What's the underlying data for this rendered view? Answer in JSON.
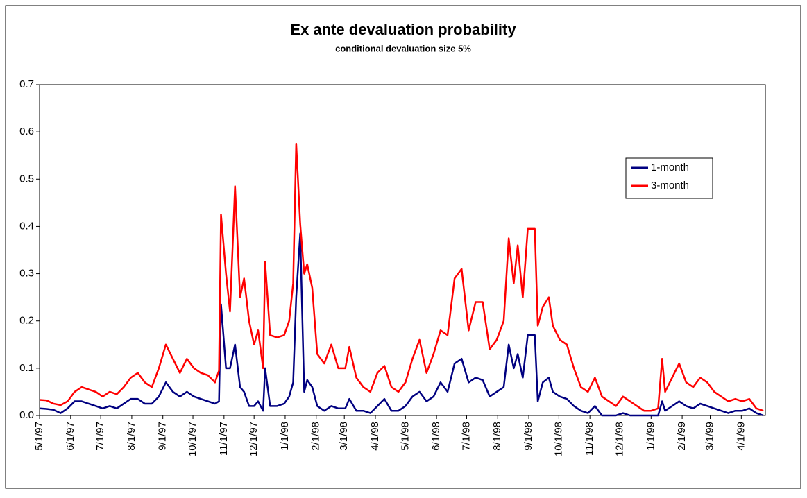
{
  "chart_data": {
    "type": "line",
    "title": "Ex ante devaluation probability",
    "subtitle": "conditional devaluation size 5%",
    "x": [
      "5/1/97",
      "5/8/97",
      "5/15/97",
      "5/22/97",
      "5/29/97",
      "6/5/97",
      "6/12/97",
      "6/19/97",
      "6/26/97",
      "7/3/97",
      "7/10/97",
      "7/17/97",
      "7/24/97",
      "7/31/97",
      "8/7/97",
      "8/14/97",
      "8/21/97",
      "8/28/97",
      "9/4/97",
      "9/11/97",
      "9/18/97",
      "9/25/97",
      "10/2/97",
      "10/9/97",
      "10/16/97",
      "10/23/97",
      "10/27/97",
      "10/29/97",
      "11/3/97",
      "11/7/97",
      "11/12/97",
      "11/17/97",
      "11/21/97",
      "11/26/97",
      "12/1/97",
      "12/5/97",
      "12/10/97",
      "12/12/97",
      "12/17/97",
      "12/24/97",
      "12/31/97",
      "1/5/98",
      "1/9/98",
      "1/12/98",
      "1/16/98",
      "1/20/98",
      "1/23/98",
      "1/28/98",
      "2/2/98",
      "2/9/98",
      "2/16/98",
      "2/23/98",
      "3/2/98",
      "3/6/98",
      "3/13/98",
      "3/20/98",
      "3/27/98",
      "4/3/98",
      "4/10/98",
      "4/17/98",
      "4/24/98",
      "5/1/98",
      "5/8/98",
      "5/15/98",
      "5/22/98",
      "5/29/98",
      "6/5/98",
      "6/12/98",
      "6/19/98",
      "6/26/98",
      "7/3/98",
      "7/10/98",
      "7/17/98",
      "7/24/98",
      "7/31/98",
      "8/7/98",
      "8/12/98",
      "8/17/98",
      "8/21/98",
      "8/26/98",
      "8/31/98",
      "9/7/98",
      "9/10/98",
      "9/15/98",
      "9/21/98",
      "9/25/98",
      "10/2/98",
      "10/9/98",
      "10/16/98",
      "10/23/98",
      "10/30/98",
      "11/6/98",
      "11/13/98",
      "11/20/98",
      "11/27/98",
      "12/4/98",
      "12/11/98",
      "12/18/98",
      "12/25/98",
      "1/1/99",
      "1/8/99",
      "1/12/99",
      "1/15/99",
      "1/22/99",
      "1/29/99",
      "2/5/99",
      "2/12/99",
      "2/19/99",
      "2/26/99",
      "3/5/99",
      "3/12/99",
      "3/19/99",
      "3/26/99",
      "4/2/99",
      "4/9/99",
      "4/16/99",
      "4/23/99"
    ],
    "series": [
      {
        "name": "1-month",
        "color": "#000080",
        "values": [
          0.015,
          0.014,
          0.012,
          0.005,
          0.015,
          0.03,
          0.03,
          0.025,
          0.02,
          0.015,
          0.02,
          0.015,
          0.025,
          0.035,
          0.035,
          0.025,
          0.025,
          0.04,
          0.07,
          0.05,
          0.04,
          0.05,
          0.04,
          0.035,
          0.03,
          0.025,
          0.03,
          0.235,
          0.1,
          0.1,
          0.15,
          0.06,
          0.05,
          0.02,
          0.02,
          0.03,
          0.01,
          0.1,
          0.02,
          0.02,
          0.025,
          0.04,
          0.07,
          0.25,
          0.385,
          0.05,
          0.075,
          0.06,
          0.02,
          0.01,
          0.02,
          0.015,
          0.015,
          0.035,
          0.01,
          0.01,
          0.005,
          0.02,
          0.035,
          0.01,
          0.01,
          0.02,
          0.04,
          0.05,
          0.03,
          0.04,
          0.07,
          0.05,
          0.11,
          0.12,
          0.07,
          0.08,
          0.075,
          0.04,
          0.05,
          0.06,
          0.15,
          0.1,
          0.13,
          0.08,
          0.17,
          0.17,
          0.03,
          0.07,
          0.08,
          0.05,
          0.04,
          0.035,
          0.02,
          0.01,
          0.005,
          0.02,
          0,
          0,
          0,
          0.005,
          0,
          0,
          0,
          0,
          0,
          0.03,
          0.01,
          0.02,
          0.03,
          0.02,
          0.015,
          0.025,
          0.02,
          0.015,
          0.01,
          0.005,
          0.01,
          0.01,
          0.015,
          0.005,
          0
        ]
      },
      {
        "name": "3-month",
        "color": "#ff0000",
        "values": [
          0.033,
          0.032,
          0.025,
          0.022,
          0.03,
          0.05,
          0.06,
          0.055,
          0.05,
          0.04,
          0.05,
          0.045,
          0.06,
          0.08,
          0.09,
          0.07,
          0.06,
          0.1,
          0.15,
          0.12,
          0.09,
          0.12,
          0.1,
          0.09,
          0.085,
          0.07,
          0.095,
          0.425,
          0.3,
          0.22,
          0.485,
          0.25,
          0.29,
          0.2,
          0.15,
          0.18,
          0.1,
          0.325,
          0.17,
          0.165,
          0.17,
          0.2,
          0.28,
          0.575,
          0.405,
          0.3,
          0.32,
          0.27,
          0.13,
          0.11,
          0.15,
          0.1,
          0.1,
          0.145,
          0.08,
          0.06,
          0.05,
          0.09,
          0.105,
          0.06,
          0.05,
          0.07,
          0.12,
          0.16,
          0.09,
          0.13,
          0.18,
          0.17,
          0.29,
          0.31,
          0.18,
          0.24,
          0.24,
          0.14,
          0.16,
          0.2,
          0.375,
          0.28,
          0.36,
          0.25,
          0.395,
          0.395,
          0.19,
          0.23,
          0.25,
          0.19,
          0.16,
          0.15,
          0.1,
          0.06,
          0.05,
          0.08,
          0.04,
          0.03,
          0.02,
          0.04,
          0.03,
          0.02,
          0.01,
          0.01,
          0.015,
          0.12,
          0.05,
          0.08,
          0.11,
          0.07,
          0.06,
          0.08,
          0.07,
          0.05,
          0.04,
          0.03,
          0.035,
          0.03,
          0.035,
          0.015,
          0.01
        ]
      }
    ],
    "xlim": [
      "5/1/97",
      "4/25/99"
    ],
    "xticks": [
      "5/1/97",
      "6/1/97",
      "7/1/97",
      "8/1/97",
      "9/1/97",
      "10/1/97",
      "11/1/97",
      "12/1/97",
      "1/1/98",
      "2/1/98",
      "3/1/98",
      "4/1/98",
      "5/1/98",
      "6/1/98",
      "7/1/98",
      "8/1/98",
      "9/1/98",
      "10/1/98",
      "11/1/98",
      "12/1/98",
      "1/1/99",
      "2/1/99",
      "3/1/99",
      "4/1/99"
    ],
    "ylim": [
      0,
      0.7
    ],
    "yticks": [
      {
        "value": 0,
        "label": "0.0"
      },
      0.1,
      0.2,
      0.3,
      0.4,
      0.5,
      0.6,
      0.7
    ],
    "grid": false,
    "legend": "upper right"
  }
}
